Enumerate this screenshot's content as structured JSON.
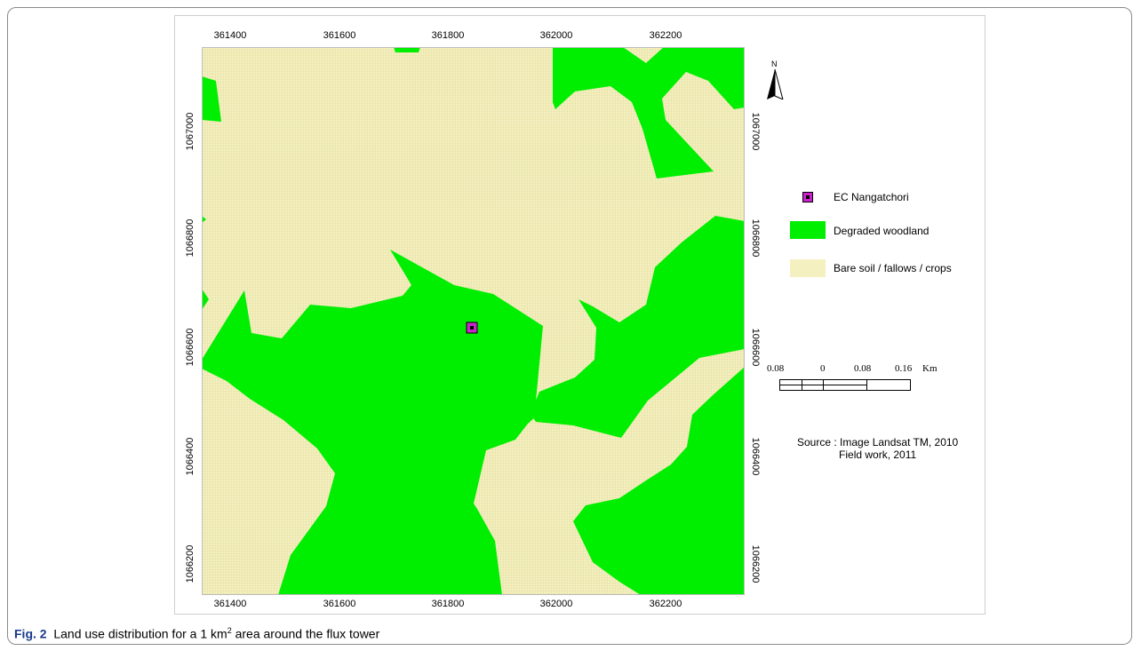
{
  "map": {
    "x_ticks": [
      "361400",
      "361600",
      "361800",
      "362000",
      "362200"
    ],
    "y_ticks": [
      "1067000",
      "1066800",
      "1066600",
      "1066400",
      "1066200"
    ],
    "north_label": "N",
    "colors": {
      "degraded_woodland": "#00ee00",
      "bare_soil": "#f4f0c0",
      "ec_marker": "#cc22cc"
    }
  },
  "legend": {
    "items": [
      {
        "label": "EC Nangatchori",
        "symbol": "square-marker"
      },
      {
        "label": "Degraded woodland",
        "symbol": "green-fill"
      },
      {
        "label": "Bare soil / fallows / crops",
        "symbol": "cream-fill"
      }
    ]
  },
  "scale_bar": {
    "labels": [
      "0.08",
      "0",
      "0.08",
      "0.16"
    ],
    "unit": "Km"
  },
  "source": {
    "line1": "Source : Image Landsat TM, 2010",
    "line2": "Field work, 2011"
  },
  "caption": {
    "label": "Fig. 2",
    "text_before": "Land use distribution for a 1 km",
    "superscript": "2",
    "text_after": " area around the flux tower"
  }
}
